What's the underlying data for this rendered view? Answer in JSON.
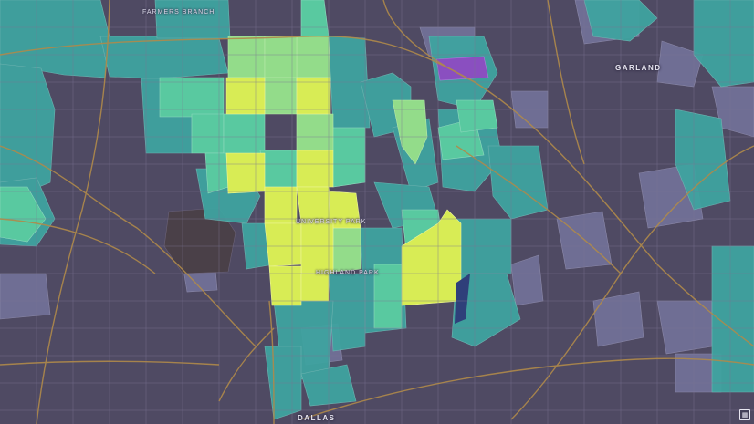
{
  "map": {
    "palette": {
      "background": "#4f4a63",
      "light_background": "#6f6e94",
      "teal": "#3fa3a0",
      "mint": "#59c9a0",
      "green": "#7fd88e",
      "yellow": "#d8ec55",
      "purple": "#8a4fc0",
      "road": "#b08a4a",
      "street": "#7a7592"
    },
    "labels": {
      "farmers_branch": "FARMERS BRANCH",
      "garland": "GARLAND",
      "dallas": "DALLAS",
      "university_park": "UNIVERSITY PARK",
      "highland_park": "HIGHLAND PARK"
    },
    "attribution_icon": "map-layers-icon"
  }
}
